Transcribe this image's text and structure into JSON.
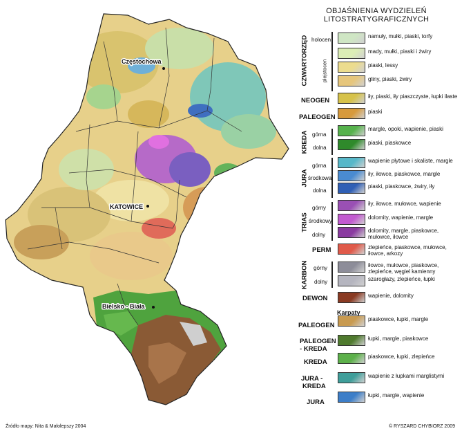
{
  "legend": {
    "title_line1": "OBJAŚNIENIA  WYDZIELEŃ",
    "title_line2": "LITOSTRATYGRAFICZNYCH",
    "karpaty_label": "Karpaty",
    "rows": [
      {
        "era": "CZWARTORZĘD",
        "epoch": "holocen",
        "desc": "namuły, mułki, piaski, torfy",
        "color": "#cfe6c4"
      },
      {
        "era": "CZWARTORZĘD",
        "epoch": "plejstocen",
        "desc": "mady, mułki, piaski i żwiry",
        "color": "#dceeb6"
      },
      {
        "era": "CZWARTORZĘD",
        "epoch": "plejstocen",
        "desc": "piaski, lessy",
        "color": "#ecdc8e"
      },
      {
        "era": "CZWARTORZĘD",
        "epoch": "plejstocen",
        "desc": "gliny, piaski, żwiry",
        "color": "#e6c67c"
      },
      {
        "era": "NEOGEN",
        "epoch": "",
        "desc": "iły, piaski, iły piaszczyste, łupki ilaste",
        "color": "#d6c24a"
      },
      {
        "era": "PALEOGEN",
        "epoch": "",
        "desc": "piaski",
        "color": "#d79a3c"
      },
      {
        "era": "KREDA",
        "epoch": "górna",
        "desc": "margle, opoki, wapienie, piaski",
        "color": "#56b24c"
      },
      {
        "era": "KREDA",
        "epoch": "dolna",
        "desc": "piaski, piaskowce",
        "color": "#2f8a2b"
      },
      {
        "era": "JURA",
        "epoch": "górna",
        "desc": "wapienie płytowe i skaliste, margle",
        "color": "#57b8c9"
      },
      {
        "era": "JURA",
        "epoch": "środkowa",
        "desc": "iły, iłowce, piaskowce, margle",
        "color": "#4a8bd1"
      },
      {
        "era": "JURA",
        "epoch": "dolna",
        "desc": "piaski, piaskowce, żwiry, iły",
        "color": "#2f5fb5"
      },
      {
        "era": "TRIAS",
        "epoch": "górny",
        "desc": "iły, iłowce, mułowce, wapienie",
        "color": "#9a50b4"
      },
      {
        "era": "TRIAS",
        "epoch": "środkowy",
        "desc": "dolomity, wapienie, margle",
        "color": "#c25ad0"
      },
      {
        "era": "TRIAS",
        "epoch": "dolny",
        "desc": "dolomity, margle, piaskowce, mułowce, iłowce",
        "color": "#8a3aa0"
      },
      {
        "era": "PERM",
        "epoch": "",
        "desc": "zlepieńce, piaskowce, mułowce, iłowce, arkozy",
        "color": "#e05a4a"
      },
      {
        "era": "KARBON",
        "epoch": "górny",
        "desc": "iłowce, mułowce, piaskowce, zlepieńce, węgiel kamienny",
        "color": "#8d8d99"
      },
      {
        "era": "KARBON",
        "epoch": "dolny",
        "desc": "szarogłazy, zlepieńce, łupki",
        "color": "#b5b5bf"
      },
      {
        "era": "DEWON",
        "epoch": "",
        "desc": "wapienie, dolomity",
        "color": "#8a3a22"
      },
      {
        "era": "PALEOGEN",
        "epoch": "",
        "desc": "piaskowce, łupki, margle",
        "color": "#c89a50"
      },
      {
        "era": "PALEOGEN - KREDA",
        "epoch": "",
        "desc": "łupki, margle, piaskowce",
        "color": "#4f7a2e"
      },
      {
        "era": "KREDA",
        "epoch": "",
        "desc": "piaskowce, łupki, zlepieńce",
        "color": "#5cb04a"
      },
      {
        "era": "JURA - KREDA",
        "epoch": "",
        "desc": "wapienie z łupkami marglistymi",
        "color": "#3f9e9a"
      },
      {
        "era": "JURA",
        "epoch": "",
        "desc": "łupki, margle, wapienie",
        "color": "#3d7ec8"
      }
    ],
    "eras": {
      "czwartorzed": "CZWARTORZĘD",
      "neogen": "NEOGEN",
      "paleogen": "PALEOGEN",
      "kreda": "KREDA",
      "jura": "JURA",
      "trias": "TRIAS",
      "perm": "PERM",
      "karbon": "KARBON",
      "dewon": "DEWON",
      "k_paleogen": "PALEOGEN",
      "k_paleogen_kreda_1": "PALEOGEN",
      "k_paleogen_kreda_2": "- KREDA",
      "k_kreda": "KREDA",
      "k_jura_kreda_1": "JURA -",
      "k_jura_kreda_2": "KREDA",
      "k_jura": "JURA"
    },
    "epochs": {
      "holocen": "holocen",
      "plejstocen": "plejstocen",
      "kreda_gorna": "górna",
      "kreda_dolna": "dolna",
      "jura_gorna": "górna",
      "jura_srodkowa": "środkowa",
      "jura_dolna": "dolna",
      "trias_gorny": "górny",
      "trias_srodkowy": "środkowy",
      "trias_dolny": "dolny",
      "karbon_gorny": "górny",
      "karbon_dolny": "dolny"
    }
  },
  "map": {
    "cities": {
      "czestochowa": "Częstochowa",
      "katowice": "KATOWICE",
      "bielsko": "Bielsko - Biała"
    }
  },
  "footer": {
    "source": "Źródło mapy: Nita & Małolepszy 2004",
    "copyright": "© RYSZARD CHYBIORZ 2009"
  }
}
